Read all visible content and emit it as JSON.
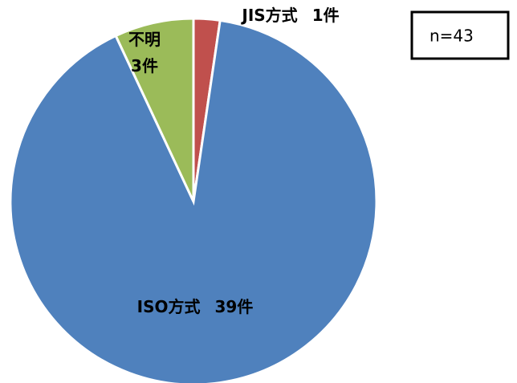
{
  "chart_data": {
    "type": "pie",
    "categories": [
      "JIS方式",
      "ISO方式",
      "不明"
    ],
    "values": [
      1,
      39,
      3
    ],
    "value_labels": [
      "1件",
      "39件",
      "3件"
    ],
    "colors": [
      "#c0504d",
      "#4f81bd",
      "#9bbb59"
    ],
    "annotation": "n=43"
  }
}
